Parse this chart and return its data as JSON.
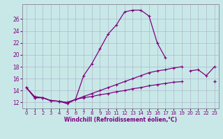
{
  "xlabel": "Windchill (Refroidissement éolien,°C)",
  "x_values": [
    0,
    1,
    2,
    3,
    4,
    5,
    6,
    7,
    8,
    9,
    10,
    11,
    12,
    13,
    14,
    15,
    16,
    17,
    18,
    19,
    20,
    21,
    22,
    23
  ],
  "line1": [
    14.5,
    13.0,
    12.8,
    12.3,
    12.2,
    11.8,
    12.5,
    16.5,
    18.5,
    21.0,
    23.5,
    25.0,
    27.2,
    27.5,
    27.5,
    26.5,
    22.0,
    19.5,
    null,
    null,
    null,
    null,
    null,
    null
  ],
  "line2": [
    null,
    null,
    null,
    null,
    null,
    null,
    null,
    null,
    null,
    null,
    null,
    null,
    null,
    null,
    null,
    null,
    null,
    null,
    null,
    null,
    17.3,
    17.5,
    16.5,
    18.0
  ],
  "line3": [
    14.5,
    12.8,
    12.8,
    12.3,
    12.2,
    12.0,
    12.5,
    13.0,
    13.5,
    14.0,
    14.5,
    15.0,
    15.5,
    16.0,
    16.5,
    17.0,
    17.3,
    17.5,
    17.8,
    18.0,
    null,
    null,
    null,
    15.5
  ],
  "line4": [
    14.5,
    12.8,
    12.8,
    12.3,
    12.2,
    12.0,
    12.5,
    12.8,
    13.0,
    13.3,
    13.5,
    13.8,
    14.0,
    14.3,
    14.5,
    14.8,
    15.0,
    15.2,
    15.4,
    15.5,
    null,
    null,
    null,
    15.5
  ],
  "line_color": "#800080",
  "bg_color": "#c8e8e8",
  "grid_color": "#b0b8cc",
  "ylim": [
    11.0,
    28.5
  ],
  "yticks": [
    12,
    14,
    16,
    18,
    20,
    22,
    24,
    26
  ],
  "xlim": [
    -0.5,
    23.5
  ],
  "xtick_fontsize": 5.0,
  "ytick_fontsize": 5.5,
  "xlabel_fontsize": 5.5
}
